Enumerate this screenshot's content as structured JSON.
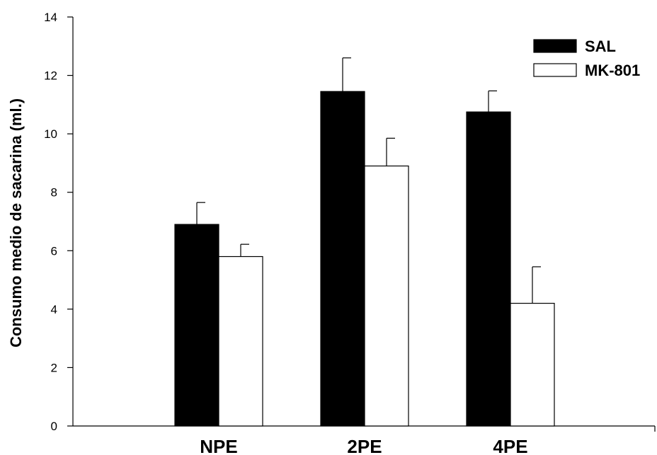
{
  "chart_data": {
    "type": "bar",
    "title": "",
    "xlabel": "",
    "ylabel": "Consumo medio de sacarina (ml.)",
    "ylim": [
      0,
      14
    ],
    "yticks": [
      0,
      2,
      4,
      6,
      8,
      10,
      12,
      14
    ],
    "categories": [
      "NPE",
      "2PE",
      "4PE"
    ],
    "series": [
      {
        "name": "SAL",
        "color": "#000000",
        "values": [
          6.9,
          11.45,
          10.75
        ],
        "errors": [
          0.75,
          1.15,
          0.72
        ]
      },
      {
        "name": "MK-801",
        "color": "#ffffff",
        "values": [
          5.8,
          8.9,
          4.2
        ],
        "errors": [
          0.42,
          0.95,
          1.25
        ]
      }
    ],
    "legend_position": "top-right",
    "grid": false
  }
}
